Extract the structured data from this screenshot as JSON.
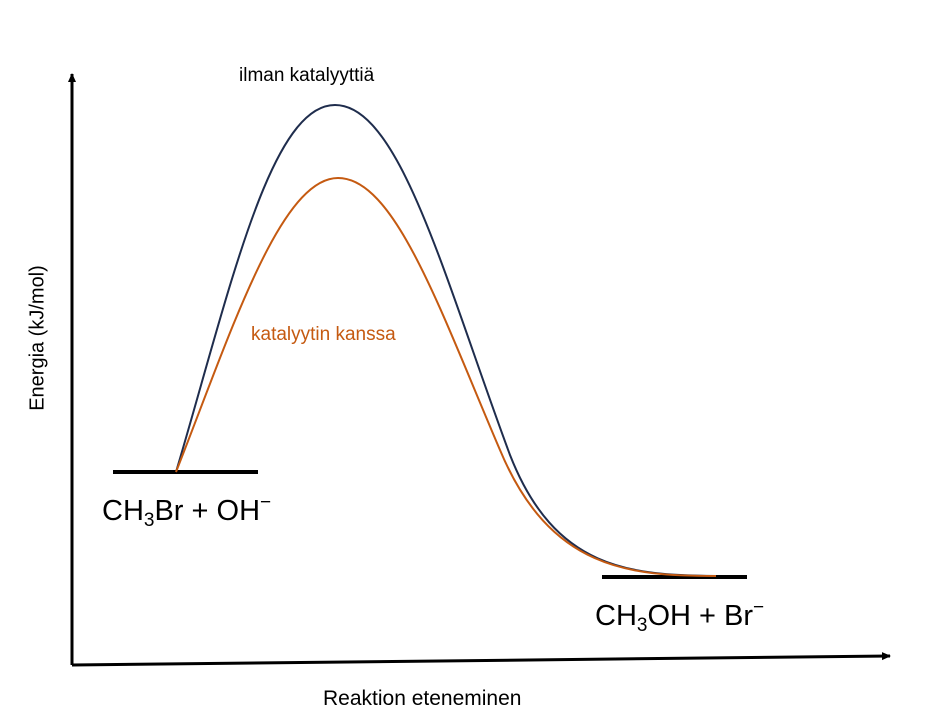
{
  "axes": {
    "y_label": "Energia (kJ/mol)",
    "x_label": "Reaktion eteneminen"
  },
  "curves": {
    "uncatalyzed": {
      "label": "ilman katalyyttiä",
      "color": "#1f2d4d"
    },
    "catalyzed": {
      "label": "katalyytin kanssa",
      "color": "#c55a11"
    }
  },
  "reactants": {
    "p1": "CH",
    "sub": "3",
    "p2": "Br + OH",
    "sup": "−"
  },
  "products": {
    "p1": "CH",
    "sub": "3",
    "p2": "OH + Br",
    "sup": "−"
  }
}
